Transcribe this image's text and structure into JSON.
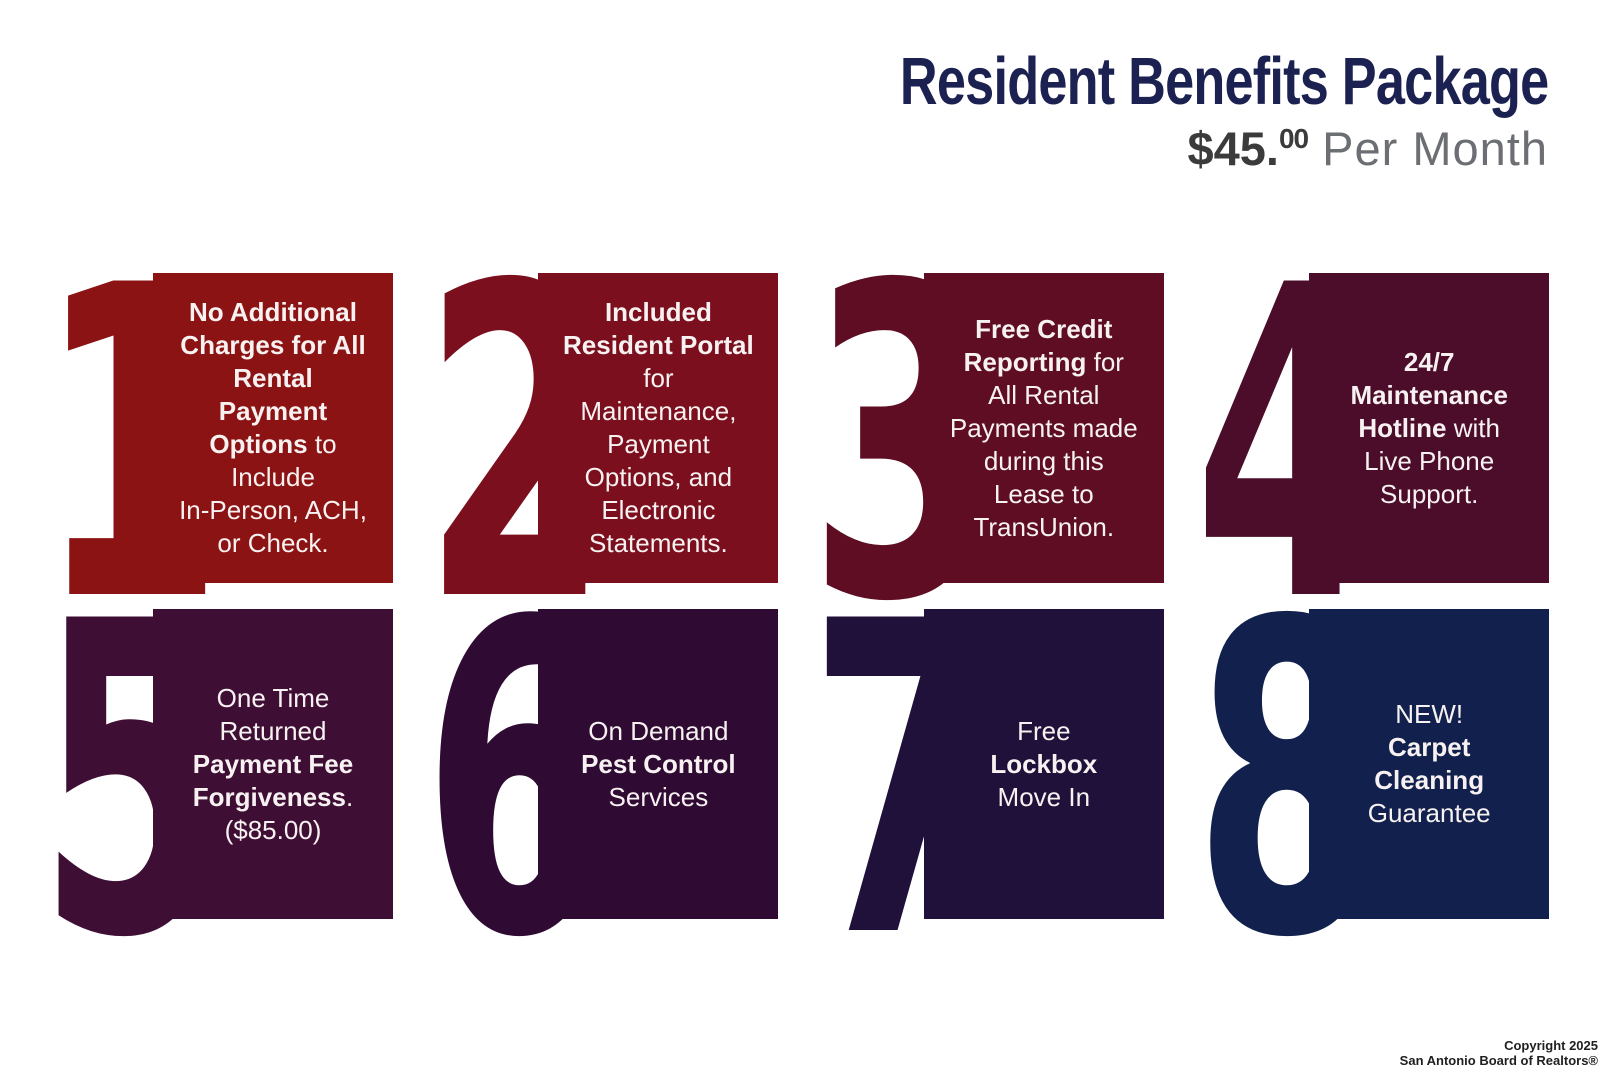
{
  "header": {
    "title": "Resident Benefits Package",
    "price_dollars": "$45.",
    "price_cents": "00",
    "price_suffix": " Per Month"
  },
  "colors": {
    "title_navy": "#1B2150",
    "price_dark": "#3b3b3b",
    "price_light": "#6b6e73",
    "card_text": "#f7f2f1",
    "copyright_text": "#1f1f1f"
  },
  "cards": [
    {
      "number": "1",
      "color": "#8C1313",
      "segments": [
        {
          "text": "No Additional\nCharges for All\nRental\nPayment\nOptions",
          "bold": true
        },
        {
          "text": " to\nInclude\nIn-Person, ACH,\nor Check.",
          "bold": false
        }
      ]
    },
    {
      "number": "2",
      "color": "#7C0F1E",
      "segments": [
        {
          "text": "Included\nResident Portal",
          "bold": true
        },
        {
          "text": "\nfor\nMaintenance,\nPayment\nOptions, and\nElectronic\nStatements.",
          "bold": false
        }
      ]
    },
    {
      "number": "3",
      "color": "#5E0D23",
      "segments": [
        {
          "text": "Free Credit\nReporting",
          "bold": true
        },
        {
          "text": " for\nAll Rental\nPayments made\nduring this\nLease to\nTransUnion.",
          "bold": false
        }
      ]
    },
    {
      "number": "4",
      "color": "#4B0D29",
      "segments": [
        {
          "text": "24/7\nMaintenance\nHotline",
          "bold": true
        },
        {
          "text": " with\nLive Phone\nSupport.",
          "bold": false
        }
      ]
    },
    {
      "number": "5",
      "color": "#3F0E34",
      "segments": [
        {
          "text": "One Time\nReturned\n",
          "bold": false
        },
        {
          "text": "Payment Fee\nForgiveness",
          "bold": true
        },
        {
          "text": ".\n($85.00)",
          "bold": false
        }
      ]
    },
    {
      "number": "6",
      "color": "#2F0B34",
      "segments": [
        {
          "text": "On Demand\n",
          "bold": false
        },
        {
          "text": "Pest Control",
          "bold": true
        },
        {
          "text": "\nServices",
          "bold": false
        }
      ]
    },
    {
      "number": "7",
      "color": "#1F1139",
      "segments": [
        {
          "text": "Free\n",
          "bold": false
        },
        {
          "text": "Lockbox",
          "bold": true
        },
        {
          "text": "\nMove In",
          "bold": false
        }
      ]
    },
    {
      "number": "8",
      "color": "#11204C",
      "segments": [
        {
          "text": "NEW!\n",
          "bold": false
        },
        {
          "text": "Carpet\nCleaning",
          "bold": true
        },
        {
          "text": "\nGuarantee",
          "bold": false
        }
      ]
    }
  ],
  "footer": {
    "line1": "Copyright 2025",
    "line2": "San Antonio Board of Realtors®"
  }
}
